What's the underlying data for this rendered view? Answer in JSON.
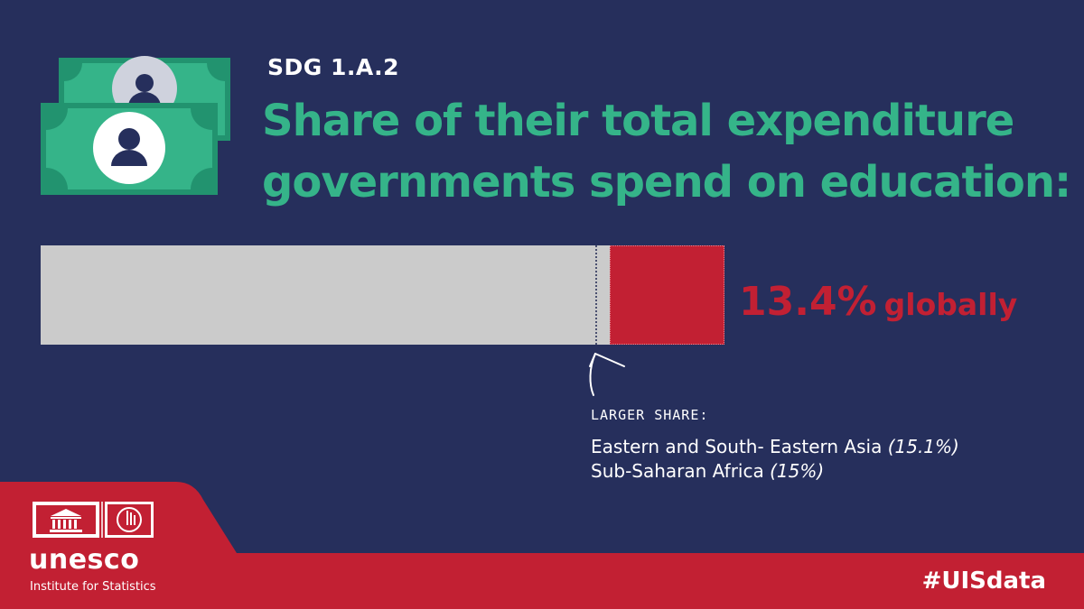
{
  "header": {
    "kicker": "SDG 1.A.2",
    "title_line_1": "Share of their total expenditure",
    "title_line_2": "governments spend on education:"
  },
  "icons": {
    "banknotes": "money-banknote-icon",
    "unesco_temple": "unesco-temple-logo-icon",
    "uis": "uis-logo-icon",
    "arrow": "pointer-arrow-icon"
  },
  "colors": {
    "background": "#262f5c",
    "accent_green": "#35b489",
    "accent_red": "#c22033",
    "track_gray": "#cbcbcb"
  },
  "chart_data": {
    "type": "bar",
    "title": "Share of their total expenditure governments spend on education:",
    "categories": [
      "globally"
    ],
    "values": [
      13.4
    ],
    "unit": "%",
    "value_label": "13.4%",
    "value_suffix": "globally",
    "max_value": 15.1,
    "marker_value": 13.4,
    "annotation": {
      "heading": "LARGER SHARE:",
      "regions": [
        {
          "name": "Eastern and South- Eastern Asia",
          "value_label": "(15.1%)",
          "value": 15.1
        },
        {
          "name": "Sub-Saharan Africa",
          "value_label": "(15%)",
          "value": 15
        }
      ]
    }
  },
  "footer": {
    "org": "unesco",
    "institute": "Institute for Statistics",
    "hashtag": "#UISdata"
  }
}
